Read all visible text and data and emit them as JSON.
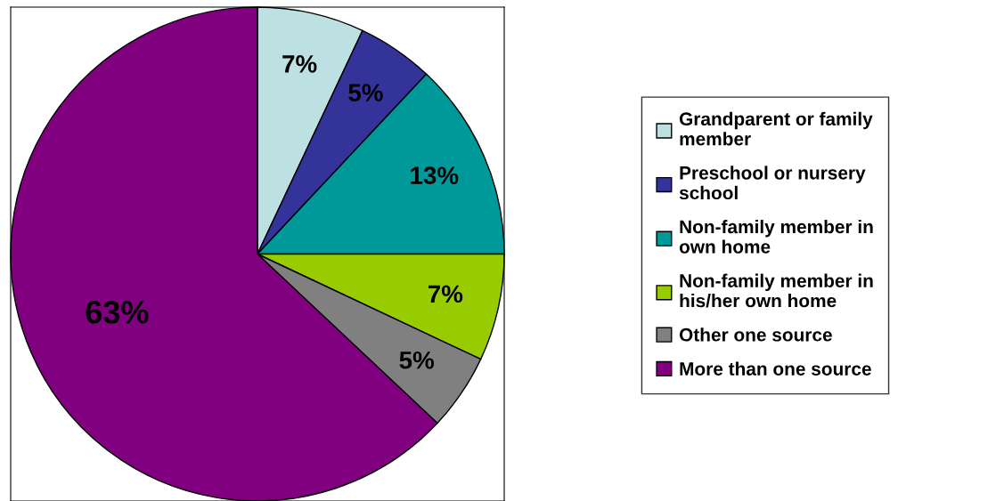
{
  "chart_data": {
    "type": "pie",
    "categories": [
      "Grandparent or family member",
      "Preschool or nursery school",
      "Non-family member in own home",
      "Non-family member in his/her own home",
      "Other one source",
      "More than one source"
    ],
    "values": [
      7,
      5,
      13,
      7,
      5,
      63
    ],
    "colors": [
      "#bde0e3",
      "#333399",
      "#009999",
      "#99cc00",
      "#808080",
      "#800080"
    ],
    "value_labels": [
      "7%",
      "5%",
      "13%",
      "7%",
      "5%",
      "63%"
    ],
    "legend": "right"
  }
}
